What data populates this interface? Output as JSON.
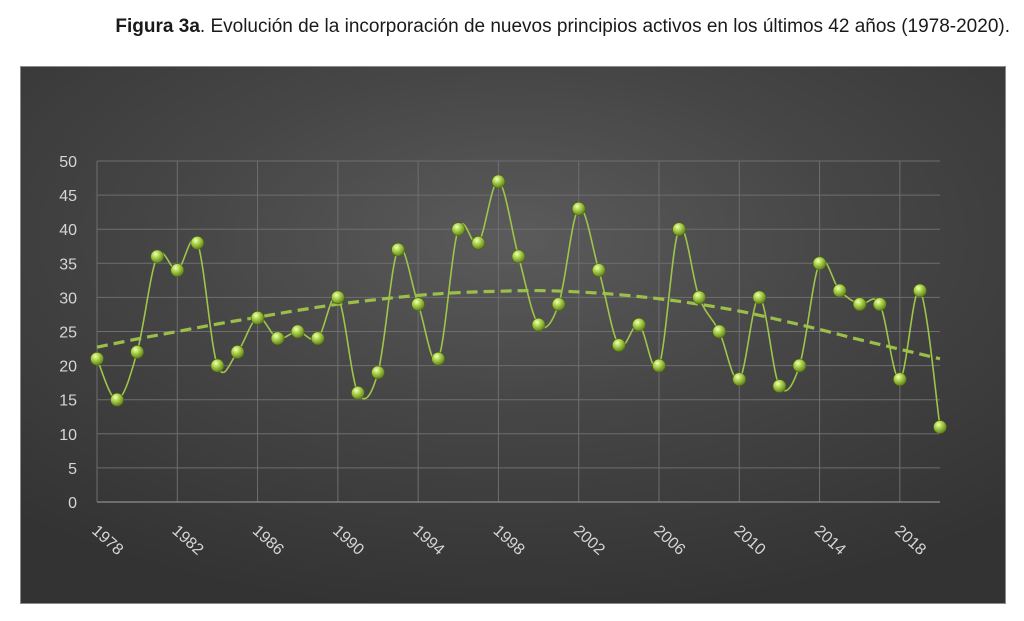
{
  "caption": {
    "label": "Figura 3a",
    "text": ". Evolución de la incorporación de nuevos principios activos en los últimos 42 años (1978-2020)."
  },
  "colors": {
    "background": "#3e3d3e",
    "line": "#9ec54a",
    "trend": "#9ec54a",
    "marker": "#a9d04e",
    "text": "#d6d6d6",
    "grid": "#6e6e6e"
  },
  "chart_data": {
    "type": "line",
    "title": "",
    "xlabel": "",
    "ylabel": "",
    "ylim": [
      0,
      50
    ],
    "xlim": [
      1978,
      2020
    ],
    "grid": true,
    "y_ticks": [
      0,
      5,
      10,
      15,
      20,
      25,
      30,
      35,
      40,
      45,
      50
    ],
    "x_ticks": [
      1978,
      1982,
      1986,
      1990,
      1994,
      1998,
      2002,
      2006,
      2010,
      2014,
      2018
    ],
    "series": [
      {
        "style": "smooth-line-with-markers",
        "x": [
          1978,
          1979,
          1980,
          1981,
          1982,
          1983,
          1984,
          1985,
          1986,
          1987,
          1988,
          1989,
          1990,
          1991,
          1992,
          1993,
          1994,
          1995,
          1996,
          1997,
          1998,
          1999,
          2000,
          2001,
          2002,
          2003,
          2004,
          2005,
          2006,
          2007,
          2008,
          2009,
          2010,
          2011,
          2012,
          2013,
          2014,
          2015,
          2016,
          2017,
          2018,
          2019,
          2020
        ],
        "y": [
          21,
          15,
          22,
          36,
          34,
          38,
          20,
          22,
          27,
          24,
          25,
          24,
          30,
          16,
          19,
          37,
          29,
          21,
          40,
          38,
          47,
          36,
          26,
          29,
          43,
          34,
          23,
          26,
          20,
          40,
          30,
          25,
          18,
          30,
          17,
          20,
          35,
          31,
          29,
          29,
          18,
          31,
          11
        ]
      },
      {
        "style": "dashed-polynomial-trend",
        "x": [
          1978,
          1980,
          1982,
          1984,
          1986,
          1988,
          1990,
          1992,
          1994,
          1996,
          1998,
          2000,
          2002,
          2004,
          2006,
          2008,
          2010,
          2012,
          2014,
          2016,
          2018,
          2020
        ],
        "y": [
          22.7,
          23.9,
          25.0,
          26.1,
          27.1,
          28.1,
          29.0,
          29.7,
          30.3,
          30.7,
          30.9,
          31.0,
          30.8,
          30.4,
          29.8,
          29.0,
          28.0,
          26.7,
          25.3,
          23.8,
          22.4,
          21.0
        ]
      }
    ]
  }
}
